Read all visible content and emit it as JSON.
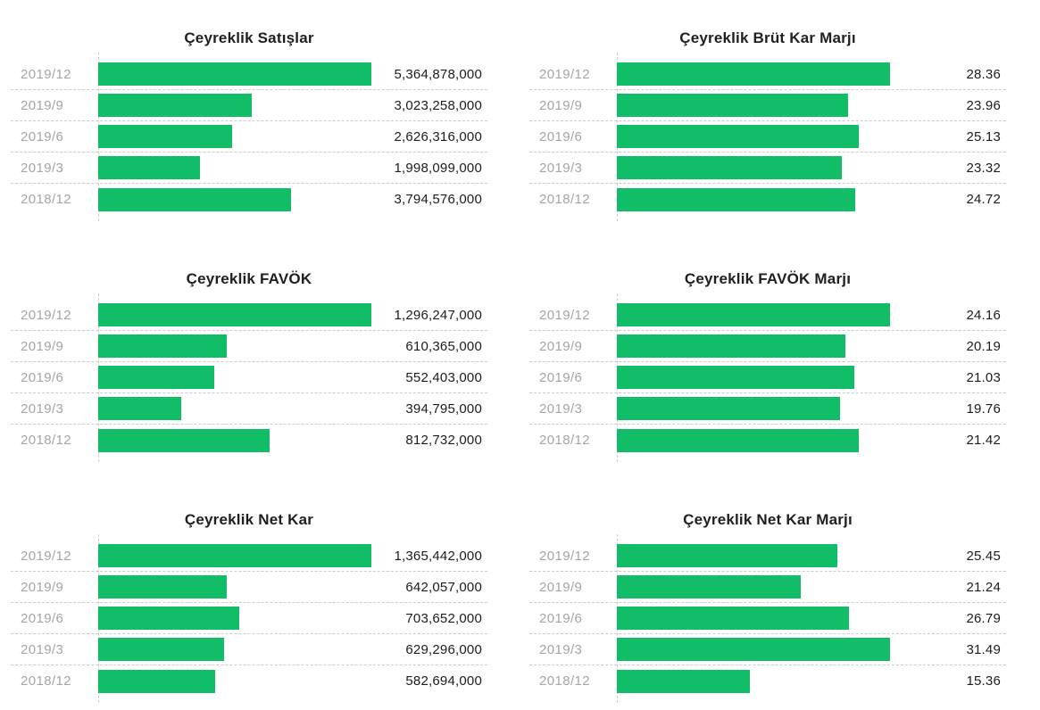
{
  "theme": {
    "background": "#ffffff",
    "bar_color": "#12bd68",
    "label_color": "#a5a5a5",
    "value_color": "#1c1c1c",
    "title_color": "#1f1f1f",
    "grid_line_color": "#cccccc"
  },
  "chart_data": [
    {
      "id": "ceyreklik-satislar",
      "type": "bar",
      "orientation": "horizontal",
      "title": "Çeyreklik Satışlar",
      "legend": false,
      "grid": "dashed-row-separators",
      "categories": [
        "2019/12",
        "2019/9",
        "2019/6",
        "2019/3",
        "2018/12"
      ],
      "values": [
        5364878000,
        3023258000,
        2626316000,
        1998099000,
        3794576000
      ],
      "value_labels": [
        "5,364,878,000",
        "3,023,258,000",
        "2,626,316,000",
        "1,998,099,000",
        "3,794,576,000"
      ],
      "xlim": [
        0,
        5364878000
      ]
    },
    {
      "id": "ceyreklik-brut-kar-marji",
      "type": "bar",
      "orientation": "horizontal",
      "title": "Çeyreklik Brüt Kar Marjı",
      "legend": false,
      "grid": "dashed-row-separators",
      "categories": [
        "2019/12",
        "2019/9",
        "2019/6",
        "2019/3",
        "2018/12"
      ],
      "values": [
        28.36,
        23.96,
        25.13,
        23.32,
        24.72
      ],
      "value_labels": [
        "28.36",
        "23.96",
        "25.13",
        "23.32",
        "24.72"
      ],
      "xlim": [
        0,
        28.36
      ]
    },
    {
      "id": "ceyreklik-favok",
      "type": "bar",
      "orientation": "horizontal",
      "title": "Çeyreklik FAVÖK",
      "legend": false,
      "grid": "dashed-row-separators",
      "categories": [
        "2019/12",
        "2019/9",
        "2019/6",
        "2019/3",
        "2018/12"
      ],
      "values": [
        1296247000,
        610365000,
        552403000,
        394795000,
        812732000
      ],
      "value_labels": [
        "1,296,247,000",
        "610,365,000",
        "552,403,000",
        "394,795,000",
        "812,732,000"
      ],
      "xlim": [
        0,
        1296247000
      ]
    },
    {
      "id": "ceyreklik-favok-marji",
      "type": "bar",
      "orientation": "horizontal",
      "title": "Çeyreklik FAVÖK Marjı",
      "legend": false,
      "grid": "dashed-row-separators",
      "categories": [
        "2019/12",
        "2019/9",
        "2019/6",
        "2019/3",
        "2018/12"
      ],
      "values": [
        24.16,
        20.19,
        21.03,
        19.76,
        21.42
      ],
      "value_labels": [
        "24.16",
        "20.19",
        "21.03",
        "19.76",
        "21.42"
      ],
      "xlim": [
        0,
        24.16
      ]
    },
    {
      "id": "ceyreklik-net-kar",
      "type": "bar",
      "orientation": "horizontal",
      "title": "Çeyreklik Net Kar",
      "legend": false,
      "grid": "dashed-row-separators",
      "categories": [
        "2019/12",
        "2019/9",
        "2019/6",
        "2019/3",
        "2018/12"
      ],
      "values": [
        1365442000,
        642057000,
        703652000,
        629296000,
        582694000
      ],
      "value_labels": [
        "1,365,442,000",
        "642,057,000",
        "703,652,000",
        "629,296,000",
        "582,694,000"
      ],
      "xlim": [
        0,
        1365442000
      ]
    },
    {
      "id": "ceyreklik-net-kar-marji",
      "type": "bar",
      "orientation": "horizontal",
      "title": "Çeyreklik Net Kar Marjı",
      "legend": false,
      "grid": "dashed-row-separators",
      "categories": [
        "2019/12",
        "2019/9",
        "2019/6",
        "2019/3",
        "2018/12"
      ],
      "values": [
        25.45,
        21.24,
        26.79,
        31.49,
        15.36
      ],
      "value_labels": [
        "25.45",
        "21.24",
        "26.79",
        "31.49",
        "15.36"
      ],
      "xlim": [
        0,
        31.49
      ]
    }
  ]
}
